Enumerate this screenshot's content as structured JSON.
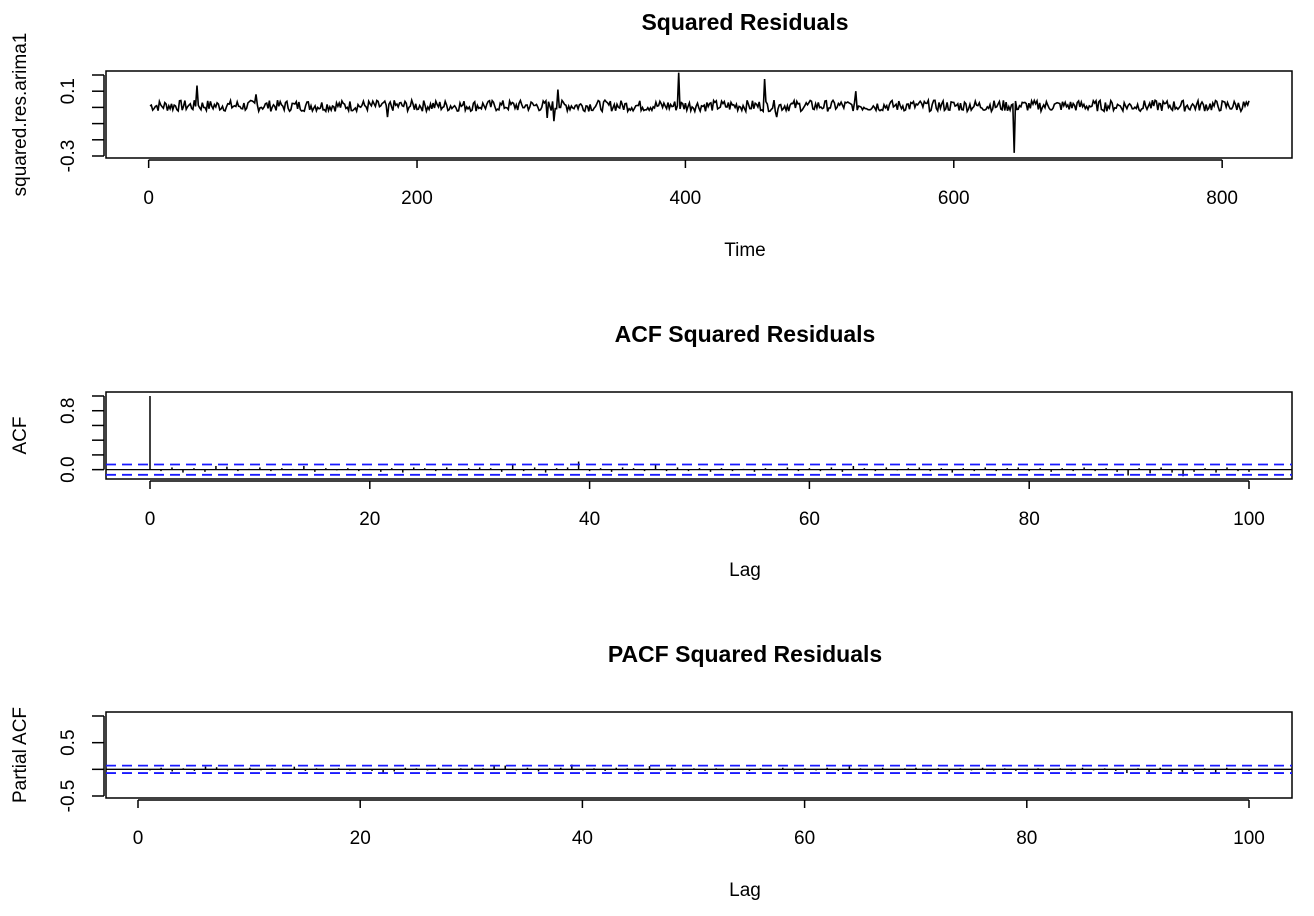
{
  "chart_data": [
    {
      "type": "line",
      "title": "Squared Residuals",
      "xlabel": "Time",
      "ylabel": "squared.res.arima1",
      "xlim": [
        1,
        820
      ],
      "ylim": [
        -0.3,
        0.2
      ],
      "x_ticks": [
        0,
        200,
        400,
        600,
        800
      ],
      "x_tick_labels": [
        "0",
        "200",
        "400",
        "600",
        "800"
      ],
      "y_ticks": [
        -0.3,
        -0.2,
        -0.1,
        0.0,
        0.1,
        0.2
      ],
      "y_tick_labels": [
        "-0.3",
        "",
        "",
        "",
        "0.1",
        ""
      ],
      "n": 820,
      "baseline": 0.01,
      "spikes": [
        {
          "x": 36,
          "y": 0.135
        },
        {
          "x": 80,
          "y": 0.08
        },
        {
          "x": 178,
          "y": -0.06
        },
        {
          "x": 297,
          "y": -0.065
        },
        {
          "x": 302,
          "y": -0.085
        },
        {
          "x": 305,
          "y": 0.11
        },
        {
          "x": 395,
          "y": 0.215
        },
        {
          "x": 459,
          "y": 0.175
        },
        {
          "x": 468,
          "y": -0.06
        },
        {
          "x": 527,
          "y": 0.1
        },
        {
          "x": 645,
          "y": -0.28
        }
      ],
      "line_color": "#000000"
    },
    {
      "type": "bar",
      "title": "ACF Squared Residuals",
      "xlabel": "Lag",
      "ylabel": "ACF",
      "xlim": [
        0,
        100
      ],
      "ylim": [
        -0.1,
        1.0
      ],
      "x_ticks": [
        0,
        20,
        40,
        60,
        80,
        100
      ],
      "x_tick_labels": [
        "0",
        "20",
        "40",
        "60",
        "80",
        "100"
      ],
      "y_ticks": [
        0.0,
        0.2,
        0.4,
        0.6,
        0.8,
        1.0
      ],
      "y_tick_labels": [
        "0.0",
        "",
        "",
        "",
        "0.8",
        ""
      ],
      "lags": [
        0,
        1,
        2,
        3,
        4,
        5,
        6,
        7,
        8,
        9,
        10,
        11,
        12,
        13,
        14,
        15,
        16,
        17,
        18,
        19,
        20,
        21,
        22,
        23,
        24,
        25,
        26,
        27,
        28,
        29,
        30,
        31,
        32,
        33,
        34,
        35,
        36,
        37,
        38,
        39,
        40,
        41,
        42,
        43,
        44,
        45,
        46,
        47,
        48,
        49,
        50,
        51,
        52,
        53,
        54,
        55,
        56,
        57,
        58,
        59,
        60,
        61,
        62,
        63,
        64,
        65,
        66,
        67,
        68,
        69,
        70,
        71,
        72,
        73,
        74,
        75,
        76,
        77,
        78,
        79,
        80,
        81,
        82,
        83,
        84,
        85,
        86,
        87,
        88,
        89,
        90,
        91,
        92,
        93,
        94,
        95,
        96,
        97,
        98,
        99,
        100
      ],
      "values": [
        1.0,
        -0.02,
        0.03,
        -0.04,
        0.02,
        -0.03,
        0.05,
        0.04,
        -0.02,
        0.01,
        0.03,
        -0.02,
        0.02,
        0.01,
        0.05,
        -0.03,
        0.02,
        -0.01,
        0.02,
        -0.02,
        0.01,
        -0.03,
        0.02,
        -0.04,
        0.03,
        0.02,
        -0.02,
        0.03,
        -0.01,
        0.02,
        0.03,
        0.02,
        -0.03,
        0.08,
        -0.02,
        0.03,
        -0.04,
        0.02,
        0.03,
        0.11,
        -0.02,
        0.02,
        -0.03,
        0.03,
        0.02,
        -0.02,
        0.07,
        -0.02,
        0.03,
        -0.02,
        0.02,
        -0.03,
        0.02,
        -0.02,
        0.01,
        -0.03,
        0.02,
        -0.01,
        0.03,
        -0.02,
        0.02,
        -0.02,
        0.03,
        -0.03,
        0.05,
        0.02,
        -0.02,
        0.03,
        -0.01,
        0.02,
        0.03,
        -0.02,
        0.02,
        -0.04,
        0.02,
        -0.02,
        0.03,
        -0.02,
        0.02,
        0.03,
        -0.02,
        0.02,
        -0.03,
        0.02,
        -0.02,
        0.03,
        -0.02,
        0.02,
        -0.03,
        -0.08,
        0.02,
        -0.05,
        0.03,
        -0.04,
        -0.09,
        -0.03,
        0.02,
        -0.04,
        0.03,
        -0.02,
        -0.03
      ],
      "conf_limit": 0.07,
      "bar_color": "#000000",
      "ci_color": "#1a1aff"
    },
    {
      "type": "bar",
      "title": "PACF Squared Residuals",
      "xlabel": "Lag",
      "ylabel": "Partial ACF",
      "xlim": [
        1,
        100
      ],
      "ylim": [
        -0.5,
        1.0
      ],
      "x_ticks": [
        0,
        20,
        40,
        60,
        80,
        100
      ],
      "x_tick_labels": [
        "0",
        "20",
        "40",
        "60",
        "80",
        "100"
      ],
      "y_ticks": [
        -0.5,
        0.0,
        0.5,
        1.0
      ],
      "y_tick_labels": [
        "-0.5",
        "",
        "0.5",
        ""
      ],
      "lags": [
        1,
        2,
        3,
        4,
        5,
        6,
        7,
        8,
        9,
        10,
        11,
        12,
        13,
        14,
        15,
        16,
        17,
        18,
        19,
        20,
        21,
        22,
        23,
        24,
        25,
        26,
        27,
        28,
        29,
        30,
        31,
        32,
        33,
        34,
        35,
        36,
        37,
        38,
        39,
        40,
        41,
        42,
        43,
        44,
        45,
        46,
        47,
        48,
        49,
        50,
        51,
        52,
        53,
        54,
        55,
        56,
        57,
        58,
        59,
        60,
        61,
        62,
        63,
        64,
        65,
        66,
        67,
        68,
        69,
        70,
        71,
        72,
        73,
        74,
        75,
        76,
        77,
        78,
        79,
        80,
        81,
        82,
        83,
        84,
        85,
        86,
        87,
        88,
        89,
        90,
        91,
        92,
        93,
        94,
        95,
        96,
        97,
        98,
        99,
        100
      ],
      "values": [
        -0.02,
        0.03,
        -0.04,
        0.02,
        -0.03,
        0.05,
        0.04,
        -0.02,
        0.01,
        0.03,
        -0.02,
        0.02,
        0.01,
        0.05,
        -0.03,
        0.02,
        -0.01,
        0.02,
        -0.02,
        0.01,
        -0.03,
        -0.07,
        -0.04,
        0.03,
        0.02,
        -0.02,
        0.03,
        -0.01,
        0.02,
        0.03,
        0.02,
        0.06,
        0.07,
        -0.02,
        0.03,
        -0.04,
        0.02,
        0.03,
        0.09,
        -0.02,
        0.02,
        -0.03,
        0.03,
        0.02,
        -0.02,
        0.06,
        -0.02,
        0.03,
        -0.02,
        0.02,
        -0.03,
        0.02,
        -0.02,
        0.01,
        -0.03,
        0.02,
        -0.01,
        0.03,
        -0.02,
        0.02,
        -0.02,
        0.03,
        -0.03,
        0.06,
        0.02,
        -0.02,
        0.03,
        -0.01,
        0.02,
        0.03,
        -0.02,
        0.02,
        -0.04,
        0.02,
        -0.02,
        0.03,
        -0.02,
        0.02,
        -0.03,
        -0.02,
        0.02,
        -0.03,
        0.02,
        -0.02,
        0.03,
        -0.02,
        0.02,
        -0.03,
        -0.07,
        0.02,
        -0.05,
        0.03,
        -0.04,
        -0.07,
        -0.03,
        0.02,
        -0.06,
        0.03,
        -0.02,
        -0.03
      ],
      "conf_limit": 0.07,
      "bar_color": "#000000",
      "ci_color": "#1a1aff"
    }
  ]
}
